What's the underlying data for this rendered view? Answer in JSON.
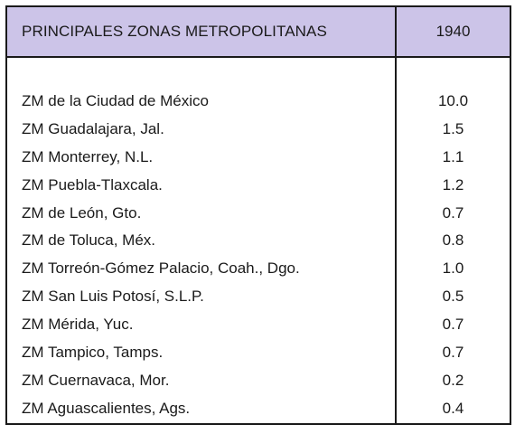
{
  "table": {
    "header": {
      "label": "PRINCIPALES ZONAS METROPOLITANAS",
      "year": "1940"
    },
    "rows": [
      {
        "name": "ZM de la Ciudad de México",
        "value": "10.0"
      },
      {
        "name": "ZM Guadalajara, Jal.",
        "value": "1.5"
      },
      {
        "name": "ZM Monterrey, N.L.",
        "value": "1.1"
      },
      {
        "name": "ZM Puebla-Tlaxcala.",
        "value": "1.2"
      },
      {
        "name": "ZM de León, Gto.",
        "value": "0.7"
      },
      {
        "name": "ZM de Toluca, Méx.",
        "value": "0.8"
      },
      {
        "name": "ZM Torreón-Gómez Palacio, Coah., Dgo.",
        "value": "1.0"
      },
      {
        "name": "ZM San Luis Potosí, S.L.P.",
        "value": "0.5"
      },
      {
        "name": "ZM Mérida, Yuc.",
        "value": "0.7"
      },
      {
        "name": "ZM Tampico, Tamps.",
        "value": "0.7"
      },
      {
        "name": "ZM Cuernavaca, Mor.",
        "value": "0.2"
      },
      {
        "name": "ZM Aguascalientes, Ags.",
        "value": "0.4"
      }
    ],
    "colors": {
      "header_background": "#ccc4e8",
      "border": "#1a1a1a",
      "text": "#1a1a1a"
    }
  }
}
